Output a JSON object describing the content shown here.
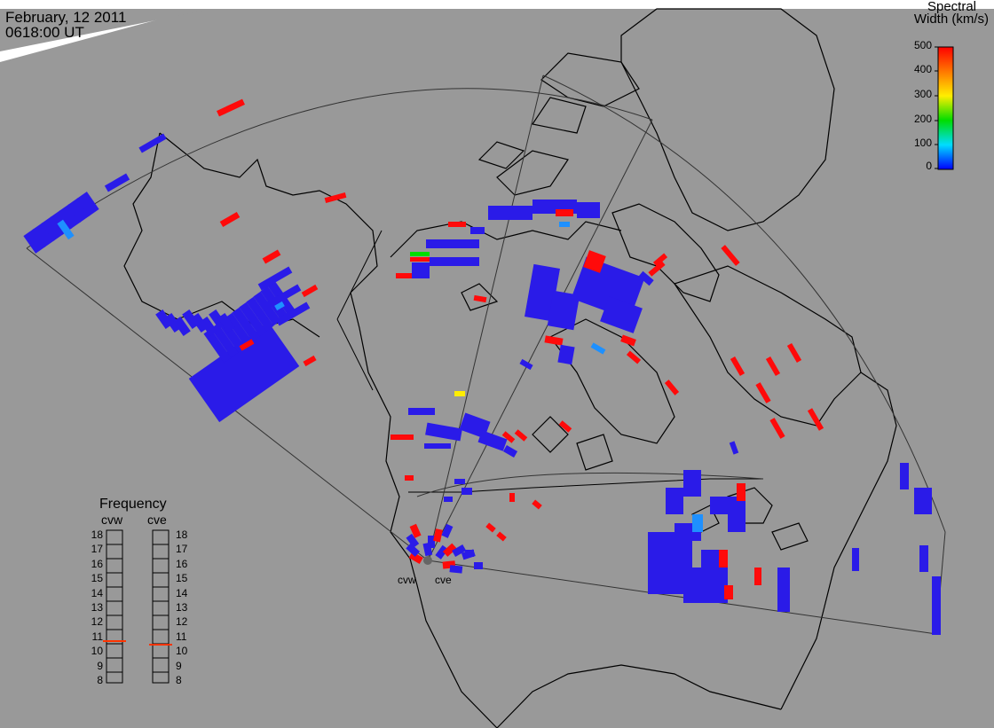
{
  "header": {
    "date": "February, 12 2011",
    "time": "0618:00 UT"
  },
  "colorbar": {
    "title_line1": "Spectral",
    "title_line2": "Width (km/s)",
    "ticks": [
      "500",
      "400",
      "300",
      "200",
      "100",
      "0"
    ],
    "colors": [
      "#ff0000",
      "#ff8800",
      "#ffee00",
      "#00dd00",
      "#00ddff",
      "#0000ff"
    ]
  },
  "radars": {
    "west": "cvw",
    "east": "cve"
  },
  "frequency": {
    "title": "Frequency",
    "left_label": "cvw",
    "right_label": "cve",
    "values": [
      "18",
      "17",
      "16",
      "15",
      "14",
      "13",
      "12",
      "11",
      "10",
      "9",
      "8"
    ],
    "left_selected": "11",
    "right_selected": "11",
    "marker_color": "#ff3300"
  },
  "colors": {
    "background": "#999999",
    "low_width": "#2a1be8",
    "high_width": "#ff0a0a",
    "mid_width": "#1e90ff",
    "green": "#00dd00",
    "yellow": "#ffee00"
  }
}
